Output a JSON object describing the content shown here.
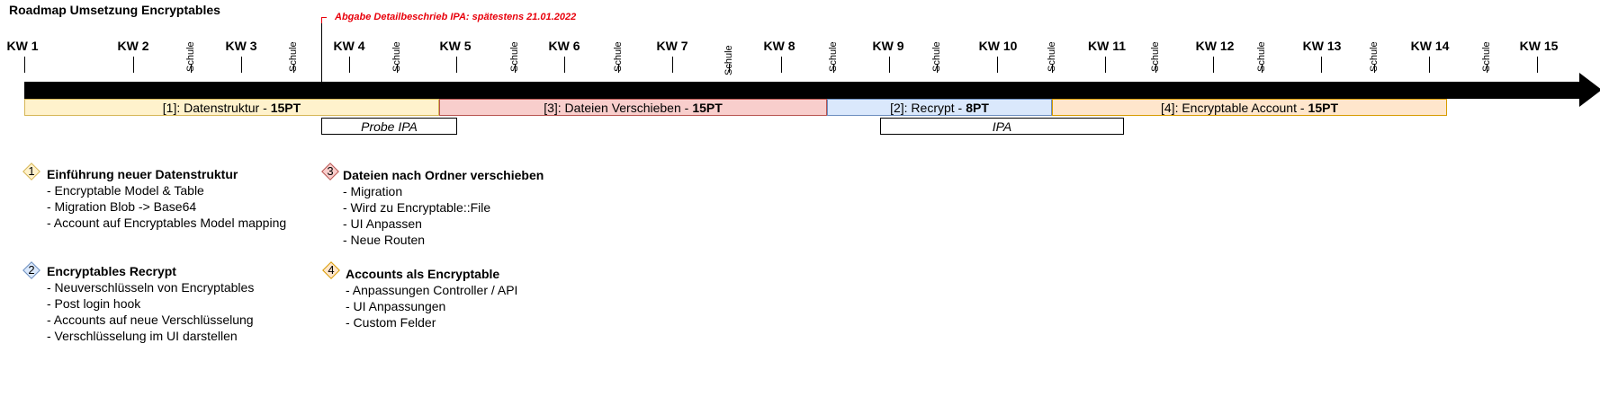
{
  "title": "Roadmap Umsetzung Encryptables",
  "deadline": "Abgabe Detailbeschrieb IPA: spätestens 21.01.2022",
  "weeks": [
    "KW 1",
    "KW 2",
    "KW 3",
    "KW 4",
    "KW 5",
    "KW 6",
    "KW 7",
    "KW 8",
    "KW 9",
    "KW 10",
    "KW 11",
    "KW 12",
    "KW 13",
    "KW 14",
    "KW 15"
  ],
  "schule_label": "Schule",
  "phases": [
    {
      "prefix": "[1]: Datenstruktur - ",
      "points": "15PT",
      "fill": "#fff2cc",
      "border": "#d6b656"
    },
    {
      "prefix": "[3]: Dateien Verschieben - ",
      "points": "15PT",
      "fill": "#f8cecc",
      "border": "#b85450"
    },
    {
      "prefix": "[2]: Recrypt - ",
      "points": "8PT",
      "fill": "#dae8fc",
      "border": "#6c8ebf"
    },
    {
      "prefix": "[4]: Encryptable Account - ",
      "points": "15PT",
      "fill": "#ffe6cc",
      "border": "#d79b00"
    }
  ],
  "subphases": [
    "Probe IPA",
    "IPA"
  ],
  "tasks": [
    {
      "num": "1",
      "title": "Einführung neuer Datenstruktur",
      "items": [
        "- Encryptable Model & Table",
        "- Migration Blob -> Base64",
        "- Account auf Encryptables Model mapping"
      ]
    },
    {
      "num": "2",
      "title": "Encryptables Recrypt",
      "items": [
        "- Neuverschlüsseln von Encryptables",
        "- Post login hook",
        "- Accounts auf neue Verschlüsselung",
        "- Verschlüsselung im UI darstellen"
      ]
    },
    {
      "num": "3",
      "title": "Dateien nach Ordner verschieben",
      "items": [
        "- Migration",
        "- Wird zu Encryptable::File",
        "- UI Anpassen",
        "- Neue Routen"
      ]
    },
    {
      "num": "4",
      "title": "Accounts als Encryptable",
      "items": [
        "- Anpassungen Controller / API",
        "- UI Anpassungen",
        "- Custom Felder"
      ]
    }
  ]
}
